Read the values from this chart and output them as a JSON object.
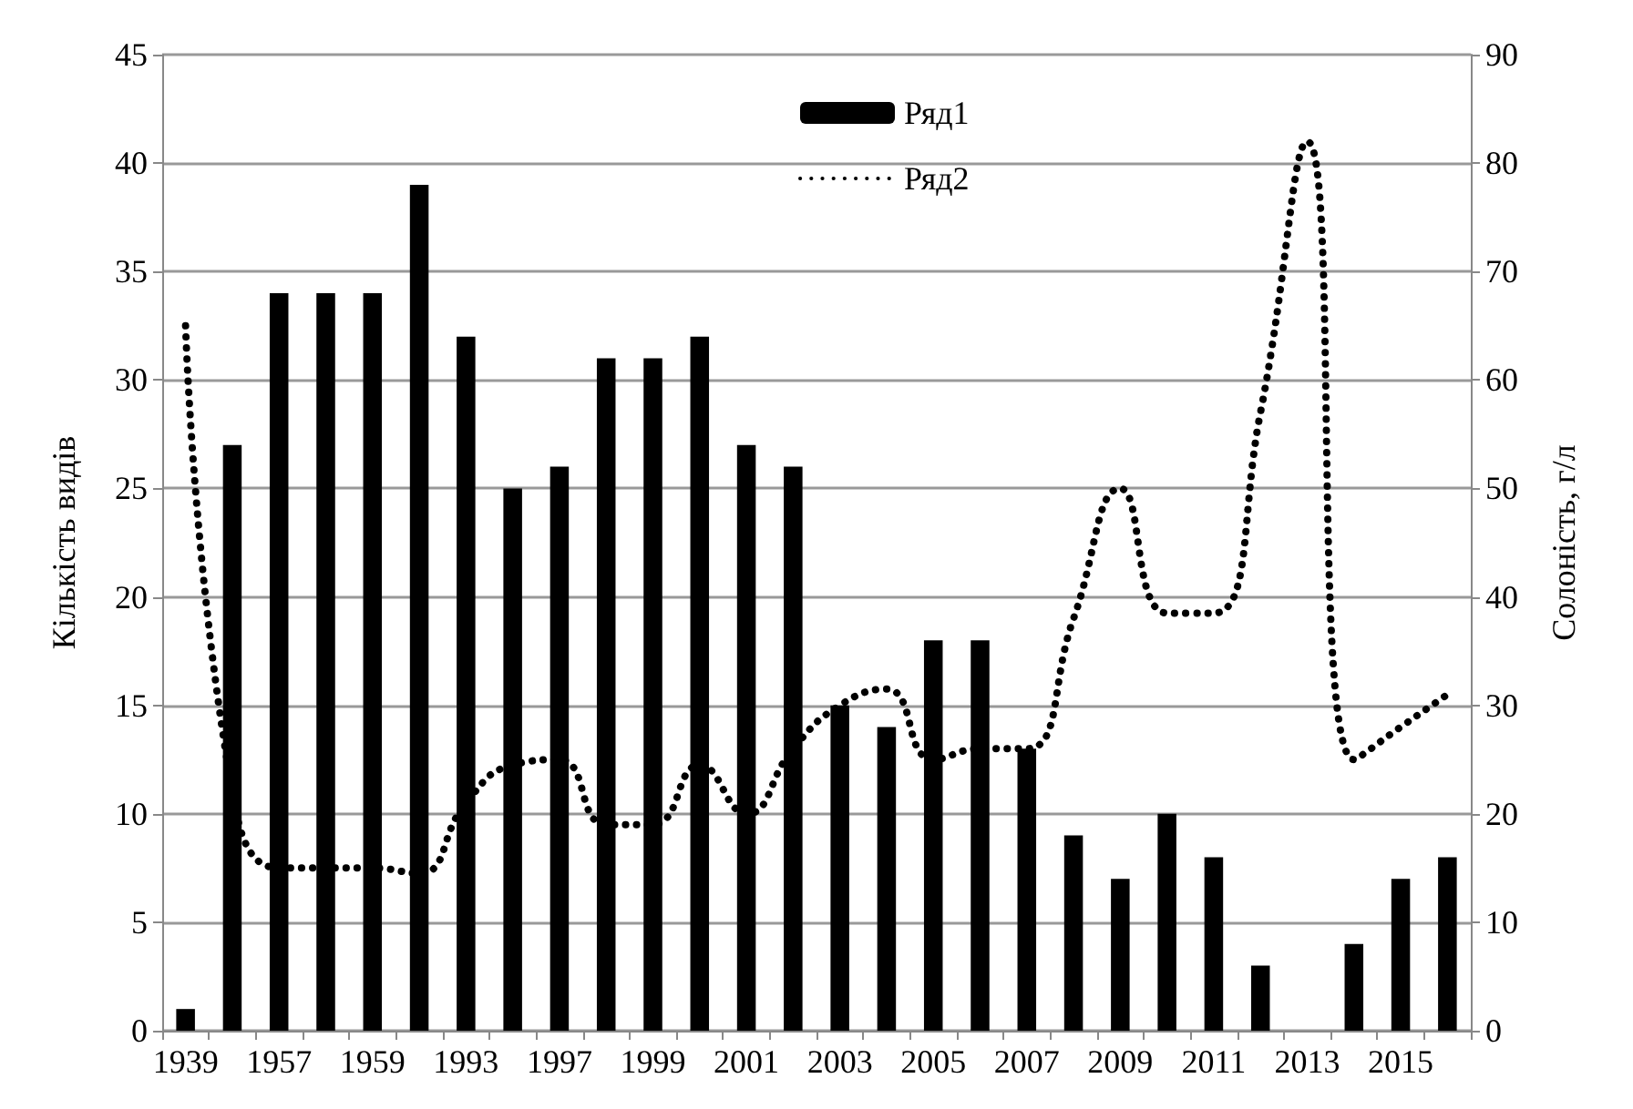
{
  "chart_data": {
    "type": "bar",
    "ylabel": "Кількість видів",
    "y2label": "Солоність, г/л",
    "categories": [
      "1939",
      null,
      "1957",
      null,
      "1959",
      null,
      "1993",
      null,
      "1997",
      null,
      "1999",
      null,
      "2001",
      null,
      "2003",
      null,
      "2005",
      null,
      "2007",
      null,
      "2009",
      null,
      "2011",
      null,
      "2013",
      null,
      "2015",
      null
    ],
    "series": [
      {
        "name": "Ряд1",
        "color": "#000000",
        "values": [
          1,
          27,
          34,
          34,
          34,
          39,
          32,
          25,
          26,
          31,
          31,
          32,
          27,
          26,
          15,
          14,
          18,
          18,
          13,
          9,
          7,
          10,
          8,
          3,
          null,
          4,
          7,
          8
        ]
      },
      {
        "name": "Ряд2",
        "type": "line",
        "axis": "y2",
        "color": "#000000",
        "line_style": "dotted",
        "marker": "none",
        "values": [
          65,
          22,
          15,
          15,
          15,
          14.5,
          21,
          24.5,
          25,
          19,
          19,
          24.5,
          20,
          26,
          30,
          31.5,
          25,
          26,
          26,
          38,
          50,
          38.5,
          38.5,
          57,
          82,
          25,
          28,
          31
        ]
      }
    ],
    "ylim": [
      0,
      45
    ],
    "yticks": [
      0,
      5,
      10,
      15,
      20,
      25,
      30,
      35,
      40,
      45
    ],
    "y2lim": [
      0,
      90
    ],
    "y2ticks": [
      0,
      10,
      20,
      30,
      40,
      50,
      60,
      70,
      80,
      90
    ],
    "grid": "y",
    "legend": "top"
  }
}
